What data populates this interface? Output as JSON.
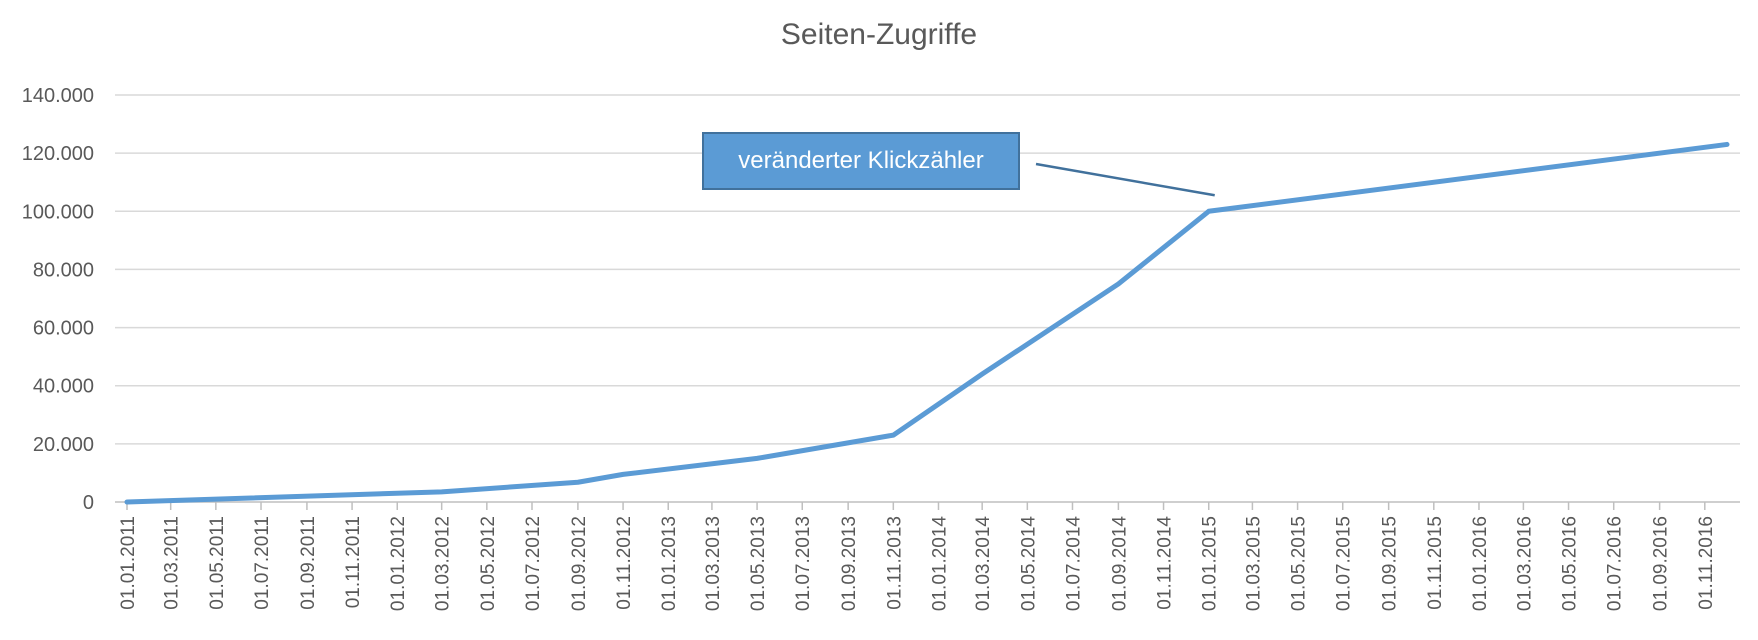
{
  "chart_data": {
    "type": "line",
    "title": "Seiten-Zugriffe",
    "xlabel": "",
    "ylabel": "",
    "ylim": [
      0,
      140000
    ],
    "y_ticks": [
      {
        "value": 0,
        "label": "0"
      },
      {
        "value": 20000,
        "label": "20.000"
      },
      {
        "value": 40000,
        "label": "40.000"
      },
      {
        "value": 60000,
        "label": "60.000"
      },
      {
        "value": 80000,
        "label": "80.000"
      },
      {
        "value": 100000,
        "label": "100.000"
      },
      {
        "value": 120000,
        "label": "120.000"
      },
      {
        "value": 140000,
        "label": "140.000"
      }
    ],
    "x_tick_labels": [
      "01.01.2011",
      "01.03.2011",
      "01.05.2011",
      "01.07.2011",
      "01.09.2011",
      "01.11.2011",
      "01.01.2012",
      "01.03.2012",
      "01.05.2012",
      "01.07.2012",
      "01.09.2012",
      "01.11.2012",
      "01.01.2013",
      "01.03.2013",
      "01.05.2013",
      "01.07.2013",
      "01.09.2013",
      "01.11.2013",
      "01.01.2014",
      "01.03.2014",
      "01.05.2014",
      "01.07.2014",
      "01.09.2014",
      "01.11.2014",
      "01.01.2015",
      "01.03.2015",
      "01.05.2015",
      "01.07.2015",
      "01.09.2015",
      "01.11.2015",
      "01.01.2016",
      "01.03.2016",
      "01.05.2016",
      "01.07.2016",
      "01.09.2016",
      "01.11.2016"
    ],
    "grid": true,
    "legend": "none",
    "series": [
      {
        "color": "#5b9bd5",
        "points": [
          {
            "x": "01.01.2011",
            "y": 0
          },
          {
            "x": "01.03.2012",
            "y": 3500
          },
          {
            "x": "01.09.2012",
            "y": 6800
          },
          {
            "x": "01.11.2012",
            "y": 9500
          },
          {
            "x": "01.05.2013",
            "y": 15000
          },
          {
            "x": "01.11.2013",
            "y": 23000
          },
          {
            "x": "01.03.2014",
            "y": 44000
          },
          {
            "x": "01.09.2014",
            "y": 75000
          },
          {
            "x": "01.01.2015",
            "y": 100000
          },
          {
            "x": "01.12.2016",
            "y": 123000
          }
        ]
      }
    ],
    "annotations": [
      {
        "text": "veränderter Klickzähler",
        "x": "01.01.2015",
        "y": 100000
      }
    ]
  }
}
